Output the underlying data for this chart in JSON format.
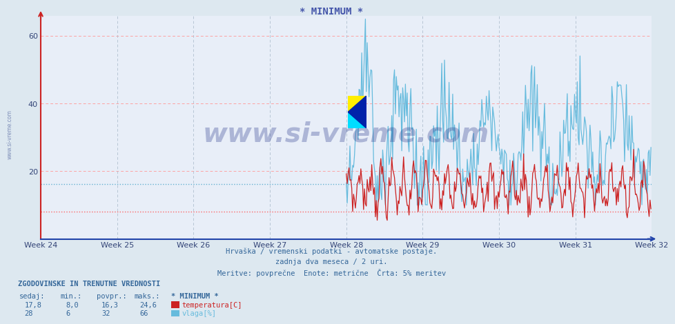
{
  "title": "* MINIMUM *",
  "title_color": "#4455aa",
  "bg_color": "#dde8f0",
  "plot_bg_color": "#e8eef8",
  "grid_h_color": "#ff9999",
  "grid_v_color": "#aabbcc",
  "xlabel_weeks": [
    "Week 24",
    "Week 25",
    "Week 26",
    "Week 27",
    "Week 28",
    "Week 29",
    "Week 30",
    "Week 31",
    "Week 32"
  ],
  "ylim": [
    0,
    66
  ],
  "yticks": [
    20,
    40,
    60
  ],
  "xmin": 0,
  "xmax": 672,
  "week_ticks_x": [
    0,
    84,
    168,
    252,
    336,
    420,
    504,
    588,
    672
  ],
  "temp_color": "#cc2222",
  "humidity_color": "#66bbdd",
  "hline_temp": 8.0,
  "hline_humidity": 16.3,
  "hline_temp_color": "#ff5555",
  "hline_humidity_color": "#55aacc",
  "watermark_text": "www.si-vreme.com",
  "watermark_color": "#223388",
  "watermark_alpha": 0.3,
  "subtitle1": "Hrvaška / vremenski podatki - avtomatske postaje.",
  "subtitle2": "zadnja dva meseca / 2 uri.",
  "subtitle3": "Meritve: povprečne  Enote: metrične  Črta: 5% meritev",
  "footer_label1": "ZGODOVINSKE IN TRENUTNE VREDNOSTI",
  "footer_col_headers": [
    "sedaj:",
    "min.:",
    "povpr.:",
    "maks.:",
    "* MINIMUM *"
  ],
  "footer_row1_vals": [
    "17,8",
    "8,0",
    "16,3",
    "24,6"
  ],
  "footer_row1_label": "temperatura[C]",
  "footer_row2_vals": [
    "28",
    "6",
    "32",
    "66"
  ],
  "footer_row2_label": "vlaga[%]",
  "temp_color_box": "#cc2222",
  "humidity_color_box": "#66bbdd",
  "n_points": 672,
  "temp_start_x": 336,
  "humidity_start_x": 336,
  "left_label": "www.si-vreme.com",
  "spine_left_color": "#cc2222",
  "spine_bottom_color": "#2244aa",
  "axis_label_color": "#334477"
}
